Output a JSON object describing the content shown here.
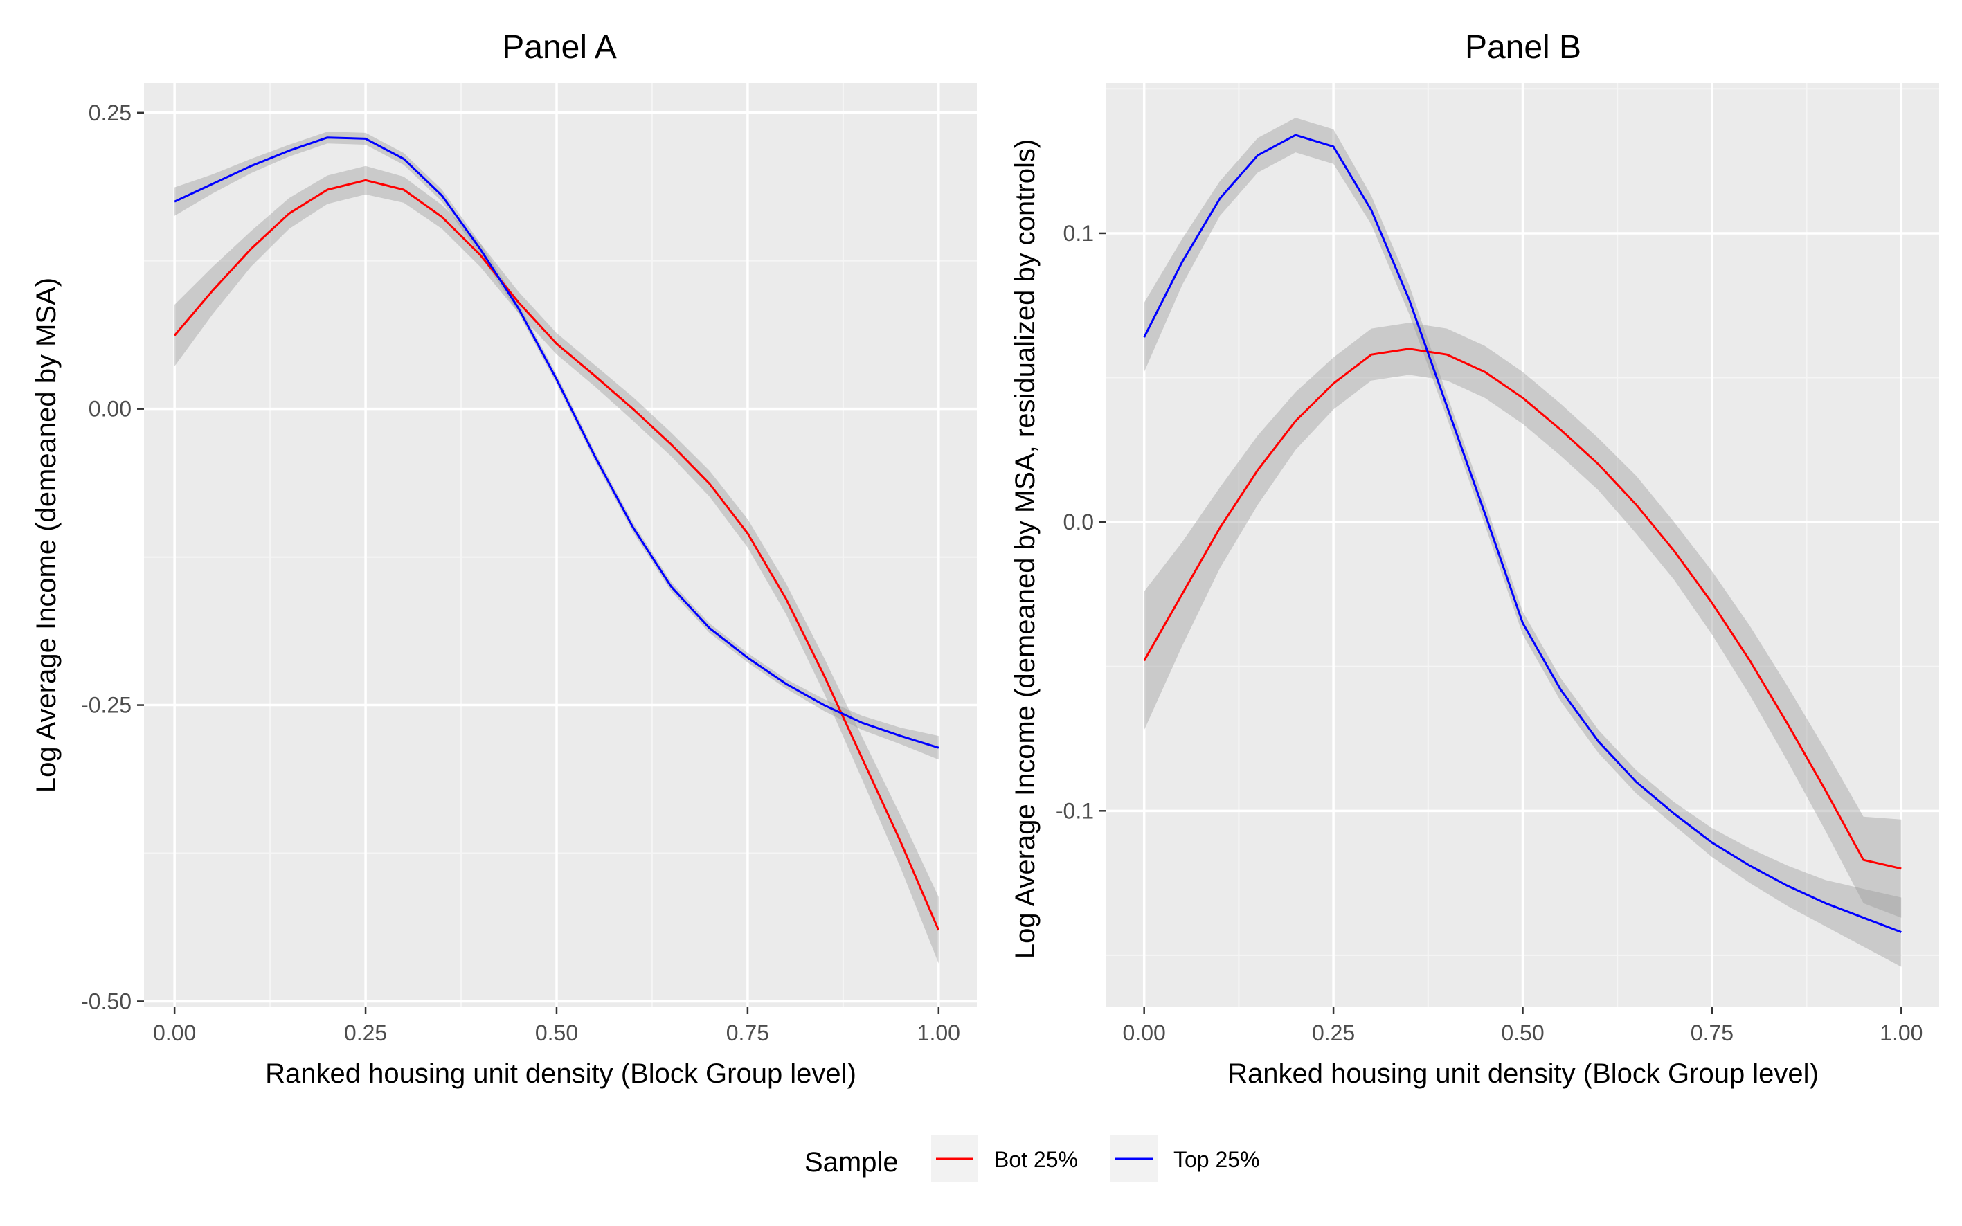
{
  "colors": {
    "panel_bg": "#ebebeb",
    "grid_major": "#ffffff",
    "grid_minor": "#f5f5f5",
    "band": "#999999",
    "tick": "#333333",
    "tick_text": "#4d4d4d"
  },
  "legend": {
    "title": "Sample",
    "position": "bottom",
    "entries": [
      {
        "name": "Bot 25%",
        "color": "#ff0000"
      },
      {
        "name": "Top 25%",
        "color": "#0000ff"
      }
    ]
  },
  "chart_data": [
    {
      "type": "line",
      "title": "Panel A",
      "xlabel": "Ranked housing unit density (Block Group level)",
      "ylabel": "Log Average Income (demeaned by MSA)",
      "xlim": [
        -0.04,
        1.05
      ],
      "ylim": [
        -0.505,
        0.275
      ],
      "x_ticks": [
        0,
        0.25,
        0.5,
        0.75,
        1
      ],
      "x_tick_labels": [
        "0.00",
        "0.25",
        "0.50",
        "0.75",
        "1.00"
      ],
      "y_ticks": [
        -0.5,
        -0.25,
        0,
        0.25
      ],
      "y_tick_labels": [
        "-0.50",
        "-0.25",
        "0.00",
        "0.25"
      ],
      "grid": true,
      "series": [
        {
          "name": "Bot 25%",
          "color": "#ff0000",
          "x": [
            0,
            0.05,
            0.1,
            0.15,
            0.2,
            0.25,
            0.3,
            0.35,
            0.4,
            0.45,
            0.5,
            0.55,
            0.6,
            0.65,
            0.7,
            0.75,
            0.8,
            0.85,
            0.9,
            0.95,
            1.0
          ],
          "y": [
            0.062,
            0.1,
            0.135,
            0.165,
            0.185,
            0.193,
            0.185,
            0.162,
            0.13,
            0.09,
            0.055,
            0.028,
            0.0,
            -0.03,
            -0.063,
            -0.105,
            -0.16,
            -0.225,
            -0.295,
            -0.365,
            -0.44
          ],
          "band_half_width": [
            0.026,
            0.02,
            0.015,
            0.013,
            0.012,
            0.012,
            0.011,
            0.01,
            0.01,
            0.009,
            0.009,
            0.009,
            0.01,
            0.01,
            0.011,
            0.012,
            0.013,
            0.015,
            0.018,
            0.022,
            0.028
          ]
        },
        {
          "name": "Top 25%",
          "color": "#0000ff",
          "x": [
            0,
            0.05,
            0.1,
            0.15,
            0.2,
            0.25,
            0.3,
            0.35,
            0.4,
            0.45,
            0.5,
            0.55,
            0.6,
            0.65,
            0.7,
            0.75,
            0.8,
            0.85,
            0.9,
            0.95,
            1.0
          ],
          "y": [
            0.175,
            0.19,
            0.205,
            0.218,
            0.229,
            0.228,
            0.211,
            0.18,
            0.135,
            0.085,
            0.025,
            -0.04,
            -0.1,
            -0.15,
            -0.185,
            -0.21,
            -0.232,
            -0.25,
            -0.265,
            -0.276,
            -0.286
          ],
          "band_half_width": [
            0.012,
            0.008,
            0.006,
            0.005,
            0.005,
            0.005,
            0.005,
            0.005,
            0.005,
            0.004,
            0.004,
            0.004,
            0.004,
            0.004,
            0.004,
            0.004,
            0.004,
            0.005,
            0.006,
            0.007,
            0.01
          ]
        }
      ]
    },
    {
      "type": "line",
      "title": "Panel B",
      "xlabel": "Ranked housing unit density (Block Group level)",
      "ylabel": "Log Average Income (demeaned by MSA, residualized by controls)",
      "xlim": [
        -0.05,
        1.05
      ],
      "ylim": [
        -0.168,
        0.152
      ],
      "x_ticks": [
        0,
        0.25,
        0.5,
        0.75,
        1
      ],
      "x_tick_labels": [
        "0.00",
        "0.25",
        "0.50",
        "0.75",
        "1.00"
      ],
      "y_ticks": [
        -0.1,
        0,
        0.1
      ],
      "y_tick_labels": [
        "-0.1",
        "0.0",
        "0.1"
      ],
      "grid": true,
      "series": [
        {
          "name": "Bot 25%",
          "color": "#ff0000",
          "x": [
            0,
            0.05,
            0.1,
            0.15,
            0.2,
            0.25,
            0.3,
            0.35,
            0.4,
            0.45,
            0.5,
            0.55,
            0.6,
            0.65,
            0.7,
            0.75,
            0.8,
            0.85,
            0.9,
            0.95,
            1.0
          ],
          "y": [
            -0.048,
            -0.025,
            -0.002,
            0.018,
            0.035,
            0.048,
            0.058,
            0.06,
            0.058,
            0.052,
            0.043,
            0.032,
            0.02,
            0.006,
            -0.01,
            -0.028,
            -0.048,
            -0.07,
            -0.093,
            -0.117,
            -0.12
          ],
          "band_half_width": [
            0.024,
            0.018,
            0.014,
            0.012,
            0.01,
            0.009,
            0.009,
            0.009,
            0.009,
            0.009,
            0.009,
            0.009,
            0.009,
            0.01,
            0.01,
            0.011,
            0.012,
            0.013,
            0.014,
            0.015,
            0.017
          ]
        },
        {
          "name": "Top 25%",
          "color": "#0000ff",
          "x": [
            0,
            0.05,
            0.1,
            0.15,
            0.2,
            0.25,
            0.3,
            0.35,
            0.4,
            0.45,
            0.5,
            0.55,
            0.6,
            0.65,
            0.7,
            0.75,
            0.8,
            0.85,
            0.9,
            0.95,
            1.0
          ],
          "y": [
            0.064,
            0.09,
            0.112,
            0.127,
            0.134,
            0.13,
            0.108,
            0.077,
            0.04,
            0.003,
            -0.035,
            -0.058,
            -0.076,
            -0.09,
            -0.101,
            -0.111,
            -0.119,
            -0.126,
            -0.132,
            -0.137,
            -0.142
          ],
          "band_half_width": [
            0.012,
            0.008,
            0.006,
            0.006,
            0.006,
            0.006,
            0.005,
            0.005,
            0.004,
            0.004,
            0.004,
            0.004,
            0.004,
            0.004,
            0.004,
            0.005,
            0.006,
            0.007,
            0.008,
            0.01,
            0.012
          ]
        }
      ]
    }
  ]
}
